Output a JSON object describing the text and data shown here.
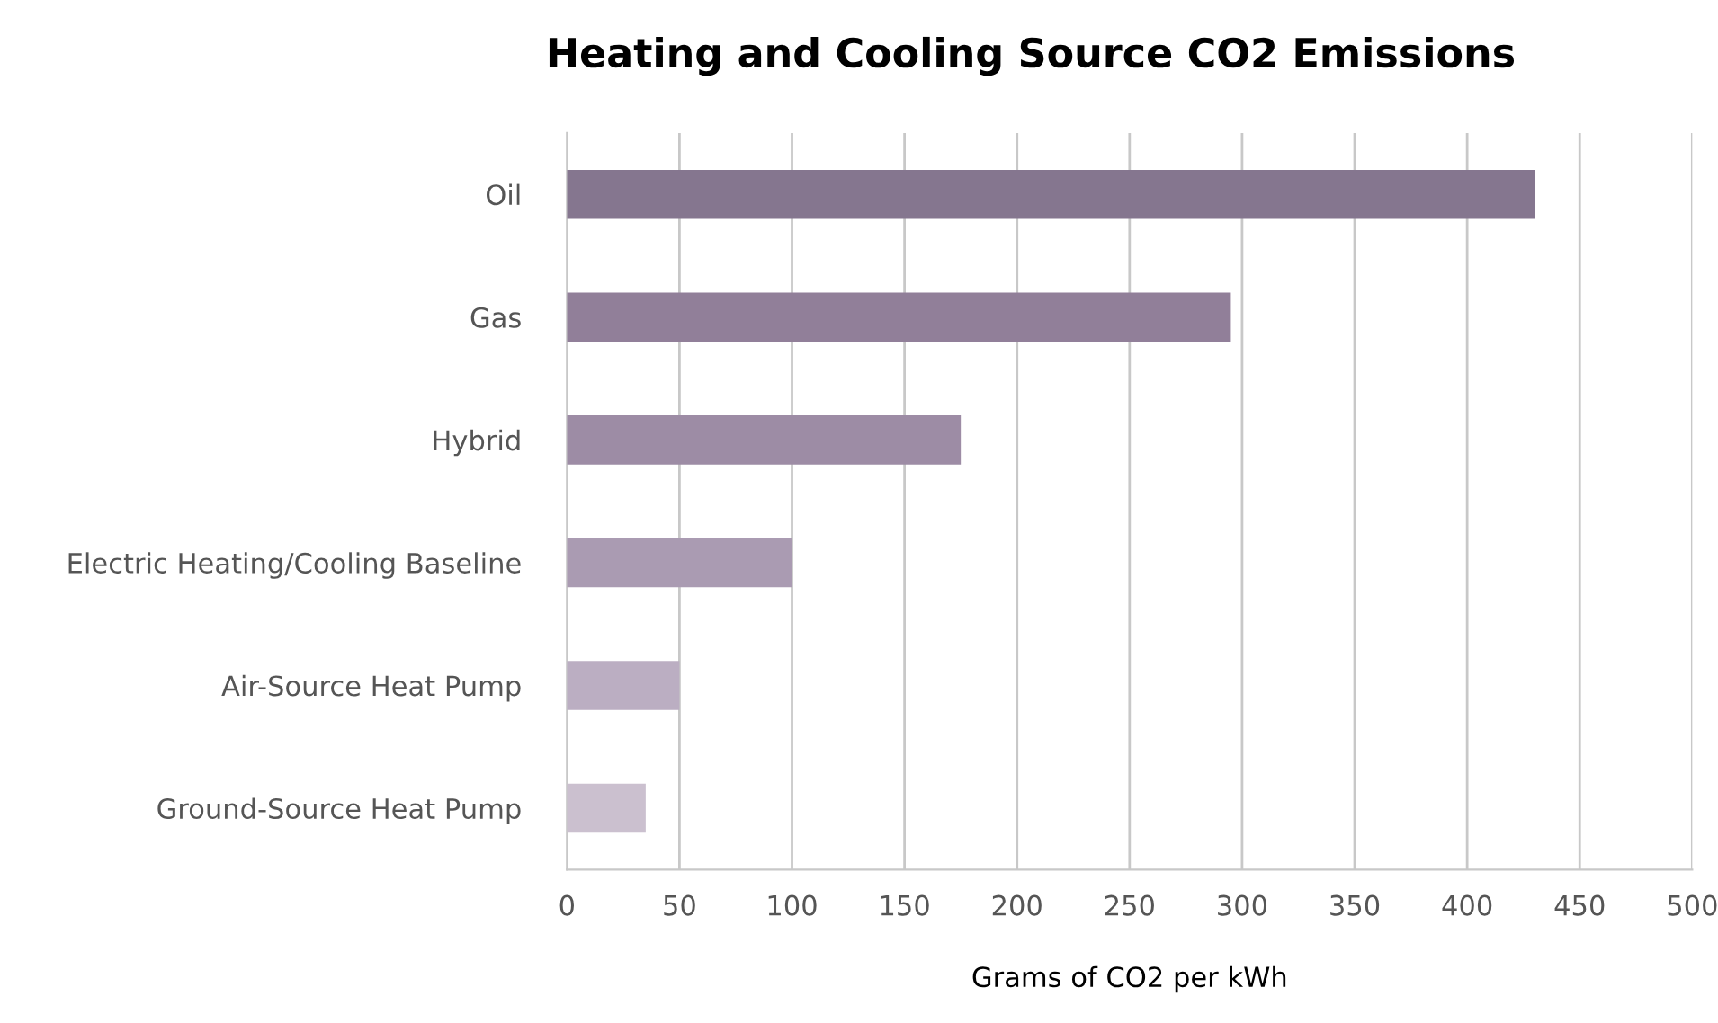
{
  "chart_data": {
    "type": "bar",
    "orientation": "horizontal",
    "title": "Heating and Cooling Source CO2 Emissions",
    "xlabel": "Grams of CO2 per kWh",
    "categories": [
      "Oil",
      "Gas",
      "Hybrid",
      "Electric Heating/Cooling Baseline",
      "Air-Source Heat Pump",
      "Ground-Source Heat Pump"
    ],
    "values": [
      430,
      295,
      175,
      100,
      50,
      35
    ],
    "colors": [
      "#85768f",
      "#917f99",
      "#9d8ca5",
      "#aa9bb2",
      "#bbaec2",
      "#cbc0cf"
    ],
    "xlim": [
      0,
      500
    ],
    "xticks": [
      0,
      50,
      100,
      150,
      200,
      250,
      300,
      350,
      400,
      450,
      500
    ],
    "grid": "x",
    "legend": false
  }
}
